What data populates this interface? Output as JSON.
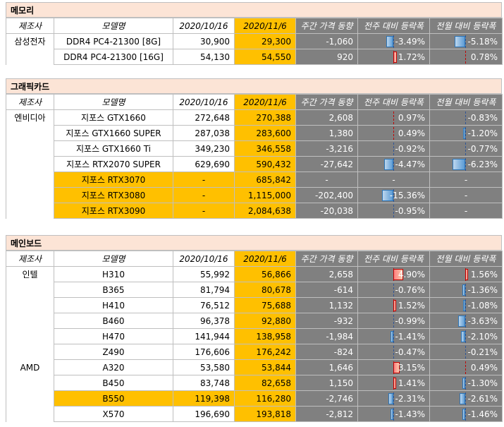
{
  "headers": {
    "manufacturer": "제조사",
    "model": "모델명",
    "date_prev": "2020/10/16",
    "date_curr": "2020/11/6",
    "weekly_change": "주간 가격 동향",
    "weekly_pct": "전주 대비 등락폭",
    "monthly_pct": "전월 대비 등락폭"
  },
  "sections": [
    {
      "title": "메모리",
      "rows": [
        {
          "mfr": "삼성전자",
          "model": "DDR4 PC4-21300 [8G]",
          "prev": "30,900",
          "curr": "29,300",
          "chg": "-1,060",
          "wk": "-3.49%",
          "mo": "-5.18%",
          "wk_v": -3.49,
          "mo_v": -5.18,
          "hl": false
        },
        {
          "mfr": "",
          "model": "DDR4 PC4-21300 [16G]",
          "prev": "54,130",
          "curr": "54,550",
          "chg": "920",
          "wk": "1.72%",
          "mo": "0.78%",
          "wk_v": 1.72,
          "mo_v": 0.78,
          "hl": false
        }
      ]
    },
    {
      "title": "그래픽카드",
      "rows": [
        {
          "mfr": "엔비디아",
          "model": "지포스 GTX1660",
          "prev": "272,648",
          "curr": "270,388",
          "chg": "2,608",
          "wk": "0.97%",
          "mo": "-0.83%",
          "wk_v": 0.97,
          "mo_v": -0.83,
          "hl": false
        },
        {
          "mfr": "",
          "model": "지포스 GTX1660 SUPER",
          "prev": "287,038",
          "curr": "283,600",
          "chg": "1,380",
          "wk": "0.49%",
          "mo": "-1.20%",
          "wk_v": 0.49,
          "mo_v": -1.2,
          "hl": false
        },
        {
          "mfr": "",
          "model": "지포스 GTX1660 Ti",
          "prev": "349,230",
          "curr": "346,558",
          "chg": "-3,216",
          "wk": "-0.92%",
          "mo": "-0.77%",
          "wk_v": -0.92,
          "mo_v": -0.77,
          "hl": false
        },
        {
          "mfr": "",
          "model": "지포스 RTX2070 SUPER",
          "prev": "629,690",
          "curr": "590,432",
          "chg": "-27,642",
          "wk": "-4.47%",
          "mo": "-6.23%",
          "wk_v": -4.47,
          "mo_v": -6.23,
          "hl": false
        },
        {
          "mfr": "",
          "model": "지포스 RTX3070",
          "prev": "-",
          "curr": "685,842",
          "chg": "-",
          "wk": "-",
          "mo": "-",
          "wk_v": 0,
          "mo_v": 0,
          "hl": true
        },
        {
          "mfr": "",
          "model": "지포스 RTX3080",
          "prev": "-",
          "curr": "1,115,000",
          "chg": "-202,400",
          "wk": "-15.36%",
          "mo": "-",
          "wk_v": -15.36,
          "mo_v": 0,
          "hl": true
        },
        {
          "mfr": "",
          "model": "지포스 RTX3090",
          "prev": "-",
          "curr": "2,084,638",
          "chg": "-20,038",
          "wk": "-0.95%",
          "mo": "-",
          "wk_v": -0.95,
          "mo_v": 0,
          "hl": true
        }
      ]
    },
    {
      "title": "메인보드",
      "rows": [
        {
          "mfr": "인텔",
          "model": "H310",
          "prev": "55,992",
          "curr": "56,866",
          "chg": "2,658",
          "wk": "4.90%",
          "mo": "1.56%",
          "wk_v": 4.9,
          "mo_v": 1.56,
          "hl": false
        },
        {
          "mfr": "",
          "model": "B365",
          "prev": "81,794",
          "curr": "80,678",
          "chg": "-614",
          "wk": "-0.76%",
          "mo": "-1.36%",
          "wk_v": -0.76,
          "mo_v": -1.36,
          "hl": false
        },
        {
          "mfr": "",
          "model": "H410",
          "prev": "76,512",
          "curr": "75,688",
          "chg": "1,132",
          "wk": "1.52%",
          "mo": "-1.08%",
          "wk_v": 1.52,
          "mo_v": -1.08,
          "hl": false
        },
        {
          "mfr": "",
          "model": "B460",
          "prev": "96,378",
          "curr": "92,880",
          "chg": "-932",
          "wk": "-0.99%",
          "mo": "-3.63%",
          "wk_v": -0.99,
          "mo_v": -3.63,
          "hl": false
        },
        {
          "mfr": "",
          "model": "H470",
          "prev": "141,944",
          "curr": "138,958",
          "chg": "-1,984",
          "wk": "-1.41%",
          "mo": "-2.10%",
          "wk_v": -1.41,
          "mo_v": -2.1,
          "hl": false
        },
        {
          "mfr": "",
          "model": "Z490",
          "prev": "176,606",
          "curr": "176,242",
          "chg": "-824",
          "wk": "-0.47%",
          "mo": "-0.21%",
          "wk_v": -0.47,
          "mo_v": -0.21,
          "hl": false
        },
        {
          "mfr": "AMD",
          "model": "A320",
          "prev": "53,580",
          "curr": "53,844",
          "chg": "1,646",
          "wk": "3.15%",
          "mo": "0.49%",
          "wk_v": 3.15,
          "mo_v": 0.49,
          "hl": false
        },
        {
          "mfr": "",
          "model": "B450",
          "prev": "83,748",
          "curr": "82,658",
          "chg": "1,150",
          "wk": "1.41%",
          "mo": "-1.30%",
          "wk_v": 1.41,
          "mo_v": -1.3,
          "hl": false
        },
        {
          "mfr": "",
          "model": "B550",
          "prev": "119,398",
          "curr": "116,280",
          "chg": "-2,746",
          "wk": "-2.31%",
          "mo": "-2.61%",
          "wk_v": -2.31,
          "mo_v": -2.61,
          "hl": true
        },
        {
          "mfr": "",
          "model": "X570",
          "prev": "196,690",
          "curr": "193,818",
          "chg": "-2,812",
          "wk": "-1.43%",
          "mo": "-1.46%",
          "wk_v": -1.43,
          "mo_v": -1.46,
          "hl": false
        }
      ]
    }
  ],
  "colors": {
    "section_title_bg": "#fce4d6",
    "highlight": "#ffc000",
    "gray_header": "#808080",
    "bar_negative": "#5b9bd5",
    "bar_positive": "#c00000"
  }
}
